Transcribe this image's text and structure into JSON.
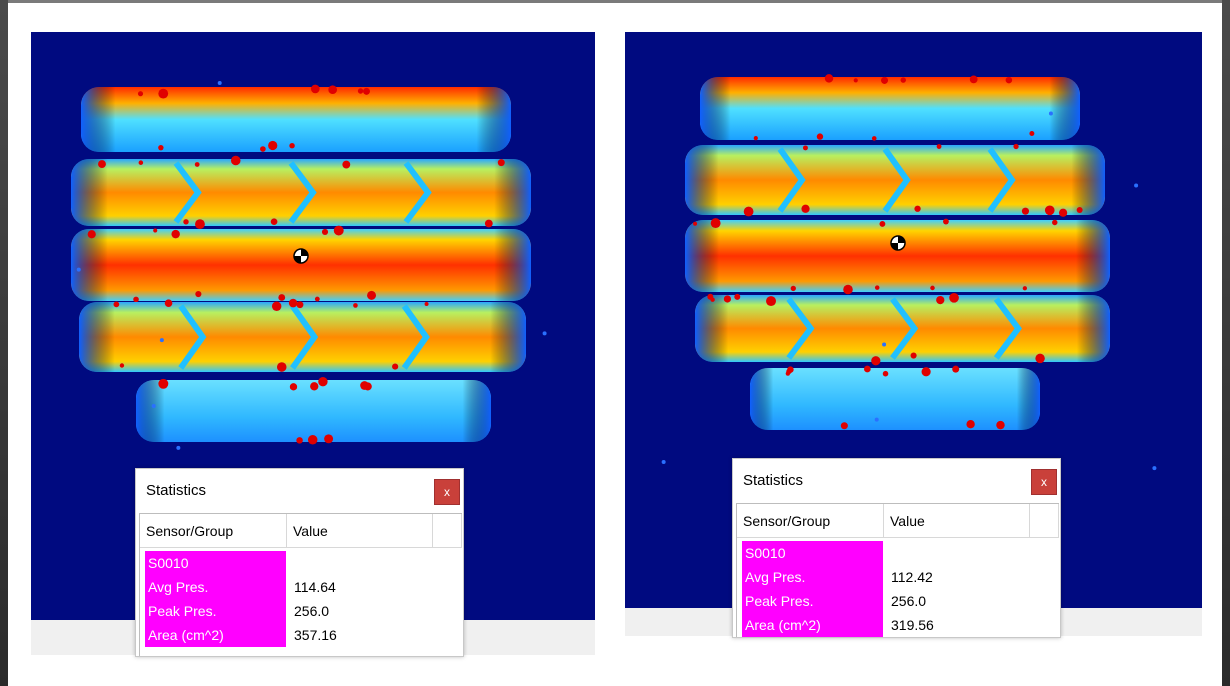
{
  "panels": [
    {
      "stats": {
        "title": "Statistics",
        "close": "x",
        "columns": [
          "Sensor/Group",
          "Value"
        ],
        "group": "S0010",
        "rows": [
          [
            "Avg Pres.",
            "114.64"
          ],
          [
            "Peak Pres.",
            "256.0"
          ],
          [
            "Area (cm^2)",
            "357.16"
          ]
        ]
      }
    },
    {
      "stats": {
        "title": "Statistics",
        "close": "x",
        "columns": [
          "Sensor/Group",
          "Value"
        ],
        "group": "S0010",
        "rows": [
          [
            "Avg Pres.",
            "112.42"
          ],
          [
            "Peak Pres.",
            "256.0"
          ],
          [
            "Area (cm^2)",
            "319.56"
          ]
        ]
      }
    }
  ]
}
